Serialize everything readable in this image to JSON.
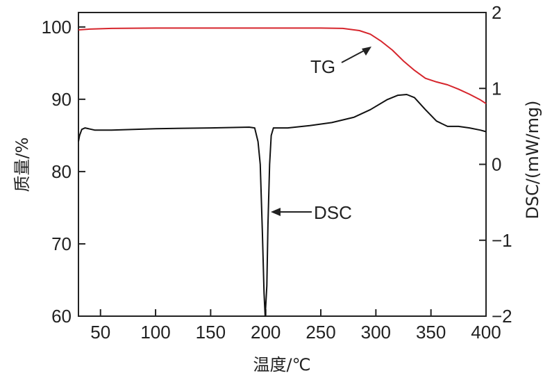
{
  "chart_data": {
    "type": "line",
    "title": "",
    "xlabel": "温度/℃",
    "ylabel_left": "质量/%",
    "ylabel_right": "DSC/(mW/mg)",
    "xlim": [
      30,
      400
    ],
    "ylim_left": [
      60,
      102
    ],
    "ylim_right": [
      -2,
      2
    ],
    "x_ticks": [
      50,
      100,
      150,
      200,
      250,
      300,
      350,
      400
    ],
    "y_left_ticks": [
      60,
      70,
      80,
      90,
      100
    ],
    "y_right_ticks": [
      -2,
      -1,
      0,
      1,
      2
    ],
    "y_right_tick_labels": [
      "−2",
      "−1",
      "0",
      "1",
      "2"
    ],
    "grid": false,
    "legend": "none",
    "series": [
      {
        "axis": "left",
        "color": "#d6252c",
        "points": [
          [
            30,
            99.6
          ],
          [
            40,
            99.7
          ],
          [
            60,
            99.8
          ],
          [
            100,
            99.85
          ],
          [
            150,
            99.85
          ],
          [
            200,
            99.85
          ],
          [
            250,
            99.85
          ],
          [
            270,
            99.8
          ],
          [
            285,
            99.5
          ],
          [
            295,
            99.0
          ],
          [
            305,
            98.0
          ],
          [
            315,
            96.8
          ],
          [
            325,
            95.3
          ],
          [
            335,
            94.0
          ],
          [
            345,
            92.9
          ],
          [
            355,
            92.4
          ],
          [
            365,
            92.0
          ],
          [
            375,
            91.4
          ],
          [
            385,
            90.7
          ],
          [
            395,
            89.9
          ],
          [
            400,
            89.4
          ]
        ]
      },
      {
        "axis": "right",
        "color": "#111111",
        "points": [
          [
            30,
            0.3
          ],
          [
            31,
            0.38
          ],
          [
            33,
            0.46
          ],
          [
            36,
            0.48
          ],
          [
            45,
            0.45
          ],
          [
            60,
            0.45
          ],
          [
            80,
            0.46
          ],
          [
            100,
            0.47
          ],
          [
            150,
            0.48
          ],
          [
            185,
            0.49
          ],
          [
            190,
            0.48
          ],
          [
            193,
            0.3
          ],
          [
            195,
            0.0
          ],
          [
            197,
            -0.9
          ],
          [
            198.5,
            -1.7
          ],
          [
            199.5,
            -2.0
          ],
          [
            201,
            -1.6
          ],
          [
            202,
            -0.8
          ],
          [
            203.5,
            0.0
          ],
          [
            205,
            0.38
          ],
          [
            207,
            0.48
          ],
          [
            220,
            0.48
          ],
          [
            240,
            0.51
          ],
          [
            260,
            0.55
          ],
          [
            280,
            0.62
          ],
          [
            295,
            0.72
          ],
          [
            310,
            0.85
          ],
          [
            320,
            0.91
          ],
          [
            328,
            0.92
          ],
          [
            335,
            0.88
          ],
          [
            345,
            0.72
          ],
          [
            355,
            0.57
          ],
          [
            365,
            0.5
          ],
          [
            375,
            0.5
          ],
          [
            385,
            0.48
          ],
          [
            395,
            0.45
          ],
          [
            400,
            0.43
          ]
        ]
      }
    ],
    "annotations": [
      {
        "text": "TG",
        "series": 0
      },
      {
        "text": "DSC",
        "series": 1
      }
    ]
  }
}
